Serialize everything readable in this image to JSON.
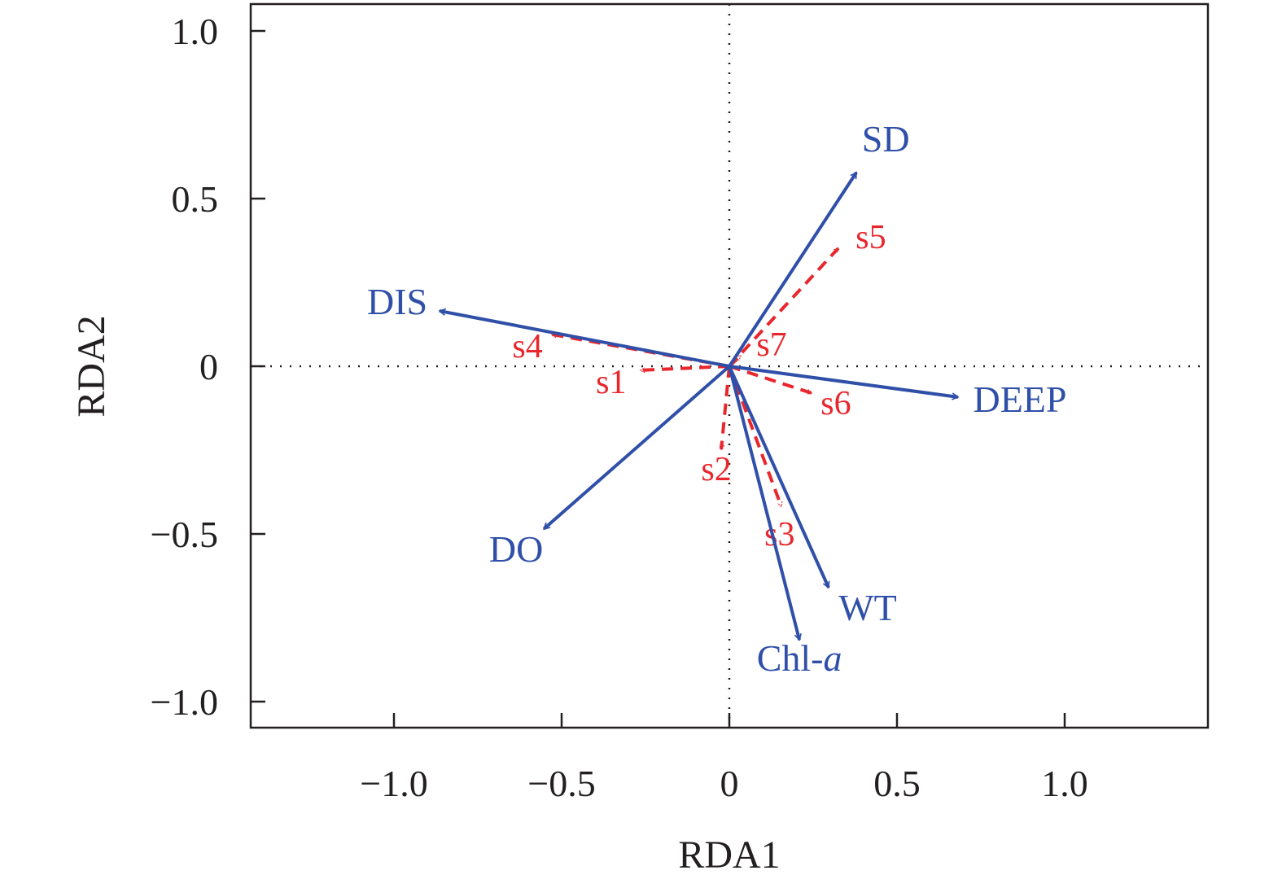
{
  "chart_data": {
    "type": "scatter",
    "subtype": "biplot",
    "title": "",
    "xlabel": "RDA1",
    "ylabel": "RDA2",
    "xlim": [
      -1.43,
      1.43
    ],
    "ylim": [
      -1.08,
      1.08
    ],
    "xticks": [
      -1.0,
      -0.5,
      0,
      0.5,
      1.0
    ],
    "xtick_labels": [
      "−1.0",
      "−0.5",
      "0",
      "0.5",
      "1.0"
    ],
    "yticks": [
      -1.0,
      -0.5,
      0,
      0.5,
      1.0
    ],
    "ytick_labels": [
      "−1.0",
      "−0.5",
      "0",
      "0.5",
      "1.0"
    ],
    "grid": false,
    "reference_lines": "dotted lines at x=0 and y=0",
    "colors": {
      "environment": "#2f4fa8",
      "sites": "#e8262c",
      "axis": "#231f20"
    },
    "environment_arrows": [
      {
        "name": "SD",
        "x": 0.379,
        "y": 0.578
      },
      {
        "name": "DIS",
        "x": -0.864,
        "y": 0.165
      },
      {
        "name": "DEEP",
        "x": 0.682,
        "y": -0.092
      },
      {
        "name": "DO",
        "x": -0.553,
        "y": -0.485
      },
      {
        "name": "WT",
        "x": 0.296,
        "y": -0.66
      },
      {
        "name": "Chl-",
        "name_italic": "a",
        "x": 0.209,
        "y": -0.816
      }
    ],
    "site_arrows": [
      {
        "name": "s1",
        "x": -0.265,
        "y": -0.012
      },
      {
        "name": "s2",
        "x": -0.024,
        "y": -0.248
      },
      {
        "name": "s3",
        "x": 0.155,
        "y": -0.418
      },
      {
        "name": "s4",
        "x": -0.529,
        "y": 0.095
      },
      {
        "name": "s5",
        "x": 0.325,
        "y": 0.352
      },
      {
        "name": "s6",
        "x": 0.245,
        "y": -0.08
      },
      {
        "name": "s7",
        "x": 0.034,
        "y": 0.032
      }
    ]
  }
}
